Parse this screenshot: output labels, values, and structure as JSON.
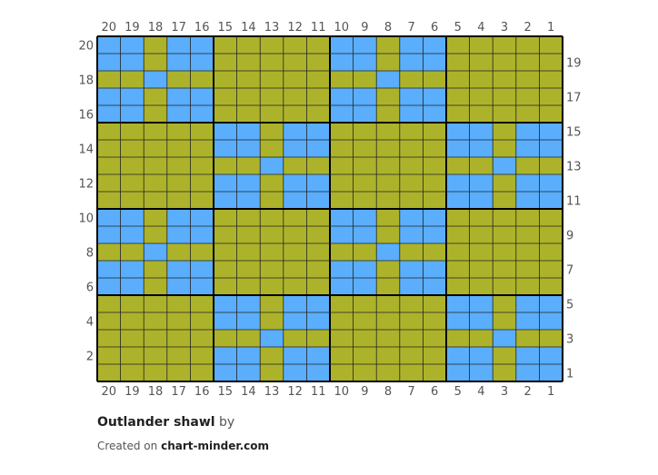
{
  "chart": {
    "title": "Outlander shawl",
    "by_text": "by",
    "credit_prefix": "Created on",
    "credit_site": "chart-minder.com",
    "columns": [
      20,
      19,
      18,
      17,
      16,
      15,
      14,
      13,
      12,
      11,
      10,
      9,
      8,
      7,
      6,
      5,
      4,
      3,
      2,
      1
    ],
    "left_row_labels": [
      20,
      18,
      16,
      14,
      12,
      10,
      8,
      6,
      4,
      2
    ],
    "right_row_labels": [
      19,
      17,
      15,
      13,
      11,
      9,
      7,
      5,
      3,
      1
    ],
    "colors": {
      "B": "#5aaefc",
      "G": "#acb32b",
      "grid": "#222222",
      "bold_grid": "#000000"
    },
    "bold_every": 5,
    "rows_top_to_bottom": [
      "BBGBBGGGGGBBGBBGGGGG",
      "BBGBBGGGGGBBGBBGGGGG",
      "GGBGGGGGGGGGBGGGGGGG",
      "BBGBBGGGGGBBGBBGGGGG",
      "BBGBBGGGGGBBGBBGGGGG",
      "GGGGGBBGBBGGGGGBBGBB",
      "GGGGGBBGBBGGGGGBBGBB",
      "GGGGGGGBGGGGGGGGGBGG",
      "GGGGGBBGBBGGGGGBBGBB",
      "GGGGGBBGBBGGGGGBBGBB",
      "BBGBBGGGGGBBGBBGGGGG",
      "BBGBBGGGGGBBGBBGGGGG",
      "GGBGGGGGGGGGBGGGGGGG",
      "BBGBBGGGGGBBGBBGGGGG",
      "BBGBBGGGGGBBGBBGGGGG",
      "GGGGGBBGBBGGGGGBBGBB",
      "GGGGGBBGBBGGGGGBBGBB",
      "GGGGGGGBGGGGGGGGGBGG",
      "GGGGGBBGBBGGGGGBBGBB",
      "GGGGGBBGBBGGGGGBBGBB"
    ]
  }
}
